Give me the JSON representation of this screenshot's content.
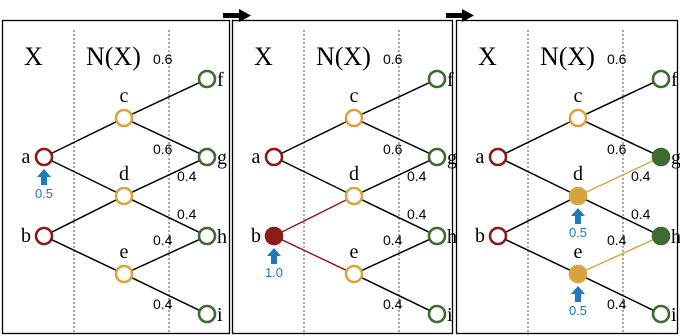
{
  "colors": {
    "red": "#8b1a1a",
    "gold": "#d9a441",
    "gold_fill": "#d4a43c",
    "green": "#3e6b2f",
    "blue": "#1f78c1",
    "line": "#000000",
    "divider": "#555555"
  },
  "column_headers": {
    "x": "X",
    "nx": "N(X)"
  },
  "nodes": {
    "a": "a",
    "b": "b",
    "c": "c",
    "d": "d",
    "e": "e",
    "f": "f",
    "g": "g",
    "h": "h",
    "i": "i"
  },
  "panels": [
    {
      "filled": [],
      "highlighted_edges": [],
      "weights": [
        {
          "edge": "c-f",
          "label": "0.6"
        },
        {
          "edge": "c-g",
          "label": "0.6"
        },
        {
          "edge": "d-g",
          "label": "0.4"
        },
        {
          "edge": "d-h",
          "label": "0.4"
        },
        {
          "edge": "e-h",
          "label": "0.4"
        },
        {
          "edge": "e-i",
          "label": "0.4"
        }
      ],
      "arrows": [
        {
          "node": "a",
          "label": "0.5"
        }
      ]
    },
    {
      "filled": [
        "b"
      ],
      "highlighted_edges": [
        "b-d",
        "b-e"
      ],
      "weights": [
        {
          "edge": "c-f",
          "label": "0.6"
        },
        {
          "edge": "c-g",
          "label": "0.6"
        },
        {
          "edge": "d-g",
          "label": "0.4"
        },
        {
          "edge": "d-h",
          "label": "0.4"
        },
        {
          "edge": "e-h",
          "label": "0.4"
        },
        {
          "edge": "e-i",
          "label": "0.4"
        }
      ],
      "arrows": [
        {
          "node": "b",
          "label": "1.0"
        }
      ]
    },
    {
      "filled": [
        "d",
        "e",
        "g",
        "h"
      ],
      "highlighted_edges": [
        "d-g",
        "e-h"
      ],
      "weights": [
        {
          "edge": "c-f",
          "label": "0.6"
        },
        {
          "edge": "c-g",
          "label": "0.6"
        },
        {
          "edge": "d-g",
          "label": "0.4"
        },
        {
          "edge": "d-h",
          "label": "0.4"
        },
        {
          "edge": "e-h",
          "label": "0.4"
        },
        {
          "edge": "e-i",
          "label": "0.4"
        }
      ],
      "arrows": [
        {
          "node": "d",
          "label": "0.5"
        },
        {
          "node": "e",
          "label": "0.5"
        }
      ]
    }
  ]
}
